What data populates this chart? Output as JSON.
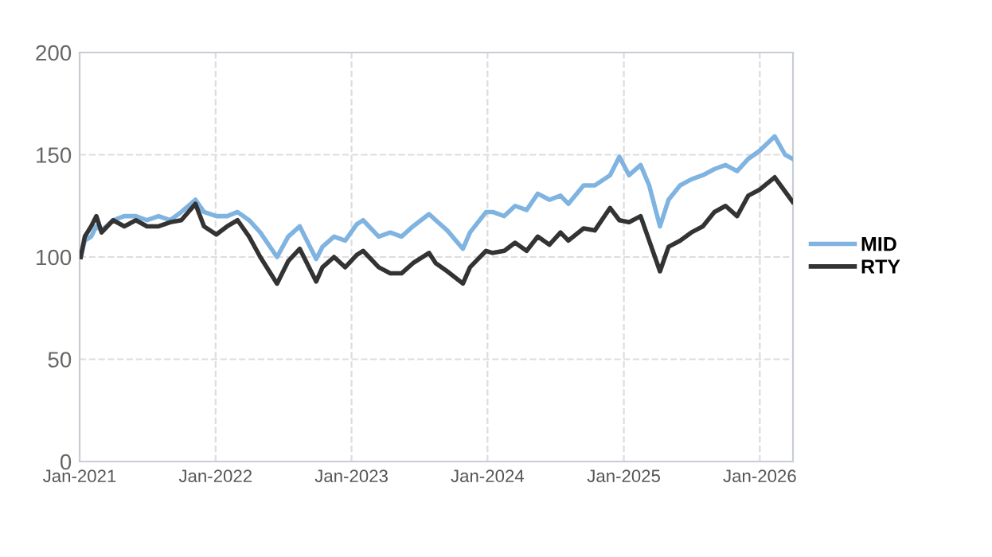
{
  "chart_data": {
    "type": "line",
    "x": [
      "2021-01-04",
      "2021-01-15",
      "2021-02-01",
      "2021-02-15",
      "2021-03-01",
      "2021-04-01",
      "2021-05-01",
      "2021-06-01",
      "2021-07-01",
      "2021-08-01",
      "2021-09-01",
      "2021-10-01",
      "2021-11-08",
      "2021-12-01",
      "2022-01-03",
      "2022-02-01",
      "2022-03-01",
      "2022-04-01",
      "2022-05-01",
      "2022-06-15",
      "2022-07-15",
      "2022-08-15",
      "2022-09-28",
      "2022-10-15",
      "2022-11-15",
      "2022-12-15",
      "2023-01-15",
      "2023-02-01",
      "2023-03-15",
      "2023-04-15",
      "2023-05-15",
      "2023-06-15",
      "2023-07-28",
      "2023-08-15",
      "2023-09-15",
      "2023-10-27",
      "2023-11-15",
      "2023-12-28",
      "2024-01-15",
      "2024-02-15",
      "2024-03-15",
      "2024-04-15",
      "2024-05-15",
      "2024-06-15",
      "2024-07-15",
      "2024-08-05",
      "2024-09-15",
      "2024-10-15",
      "2024-11-25",
      "2024-12-20",
      "2025-01-15",
      "2025-02-15",
      "2025-03-10",
      "2025-04-08",
      "2025-05-01",
      "2025-06-01",
      "2025-07-01",
      "2025-08-01",
      "2025-09-01",
      "2025-10-01",
      "2025-11-01",
      "2025-12-01",
      "2026-01-01",
      "2026-02-10",
      "2026-03-10",
      "2026-03-30"
    ],
    "series": [
      {
        "name": "MID",
        "color": "#7fb3e0",
        "values": [
          100,
          108,
          110,
          115,
          113,
          118,
          120,
          120,
          118,
          120,
          118,
          122,
          128,
          122,
          120,
          120,
          122,
          118,
          112,
          100,
          110,
          115,
          99,
          105,
          110,
          108,
          116,
          118,
          110,
          112,
          110,
          115,
          121,
          118,
          113,
          104,
          112,
          122,
          122,
          120,
          125,
          123,
          131,
          128,
          130,
          126,
          135,
          135,
          140,
          149,
          140,
          145,
          135,
          115,
          128,
          135,
          138,
          140,
          143,
          145,
          142,
          148,
          152,
          159,
          150,
          148
        ]
      },
      {
        "name": "RTY",
        "color": "#333333",
        "values": [
          100,
          110,
          115,
          120,
          112,
          118,
          115,
          118,
          115,
          115,
          117,
          118,
          126,
          115,
          111,
          115,
          118,
          110,
          100,
          87,
          98,
          104,
          88,
          95,
          100,
          95,
          101,
          103,
          95,
          92,
          92,
          97,
          102,
          97,
          93,
          87,
          95,
          103,
          102,
          103,
          107,
          103,
          110,
          106,
          112,
          108,
          114,
          113,
          124,
          118,
          117,
          120,
          108,
          93,
          105,
          108,
          112,
          115,
          122,
          125,
          120,
          130,
          133,
          139,
          132,
          127
        ]
      }
    ],
    "xlim": [
      "2021-01-01",
      "2026-03-31"
    ],
    "xticks": [
      {
        "value": "2021-01-01",
        "label": "Jan-2021"
      },
      {
        "value": "2022-01-01",
        "label": "Jan-2022"
      },
      {
        "value": "2023-01-01",
        "label": "Jan-2023"
      },
      {
        "value": "2024-01-01",
        "label": "Jan-2024"
      },
      {
        "value": "2025-01-01",
        "label": "Jan-2025"
      },
      {
        "value": "2026-01-01",
        "label": "Jan-2026"
      }
    ],
    "ylim": [
      0,
      200
    ],
    "yticks": [
      0,
      50,
      100,
      150,
      200
    ],
    "grid": true,
    "legend": "right",
    "line_style": "solid",
    "marker": "none"
  }
}
